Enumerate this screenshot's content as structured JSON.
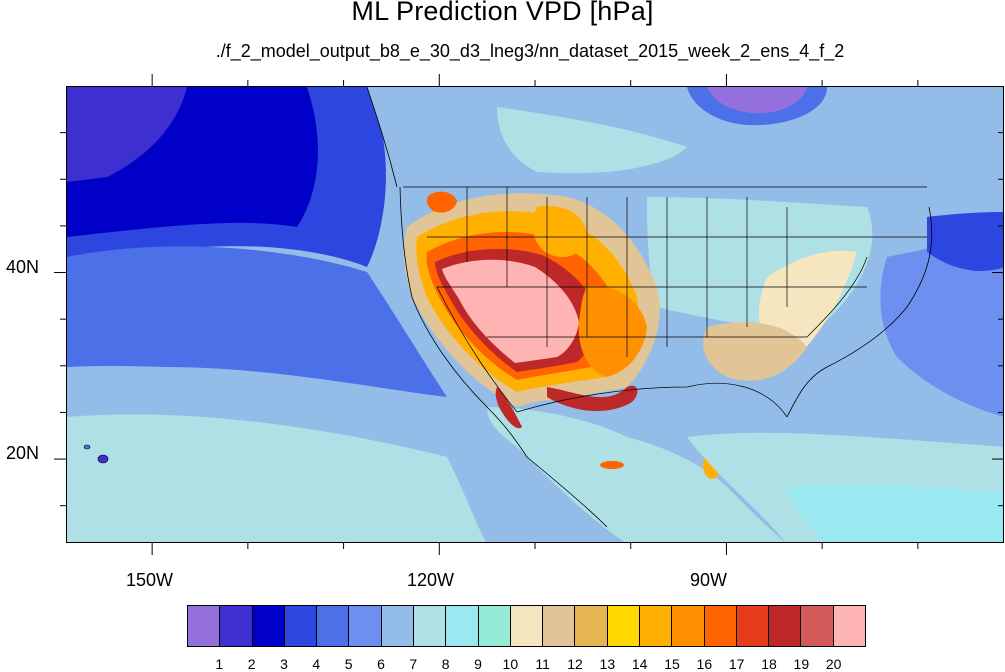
{
  "title": "ML Prediction VPD [hPa]",
  "subtitle": "./f_2_model_output_b8_e_30_d3_lneg3/nn_dataset_2015_week_2_ens_4_f_2",
  "map": {
    "lon_labels": [
      "150W",
      "120W",
      "90W"
    ],
    "lat_labels": [
      "40N",
      "20N"
    ],
    "lon_range": [
      -159,
      -61
    ],
    "lat_range": [
      11,
      60
    ],
    "variable": "VPD",
    "units": "hPa"
  },
  "colorbar": {
    "colors": [
      "#9370db",
      "#3e2fd0",
      "#0000c8",
      "#2d46e0",
      "#4c70e8",
      "#6d8ff0",
      "#93bde8",
      "#aee0e6",
      "#9ae8f0",
      "#94ecd8",
      "#f5e6c0",
      "#e2c596",
      "#e6b450",
      "#ffd800",
      "#ffb000",
      "#ff9000",
      "#ff6400",
      "#e63c1e",
      "#be2828",
      "#d25a5a",
      "#ffb4b4"
    ],
    "labels": [
      "1",
      "2",
      "3",
      "4",
      "5",
      "6",
      "7",
      "8",
      "9",
      "10",
      "11",
      "12",
      "13",
      "14",
      "15",
      "16",
      "17",
      "18",
      "19",
      "20"
    ]
  }
}
